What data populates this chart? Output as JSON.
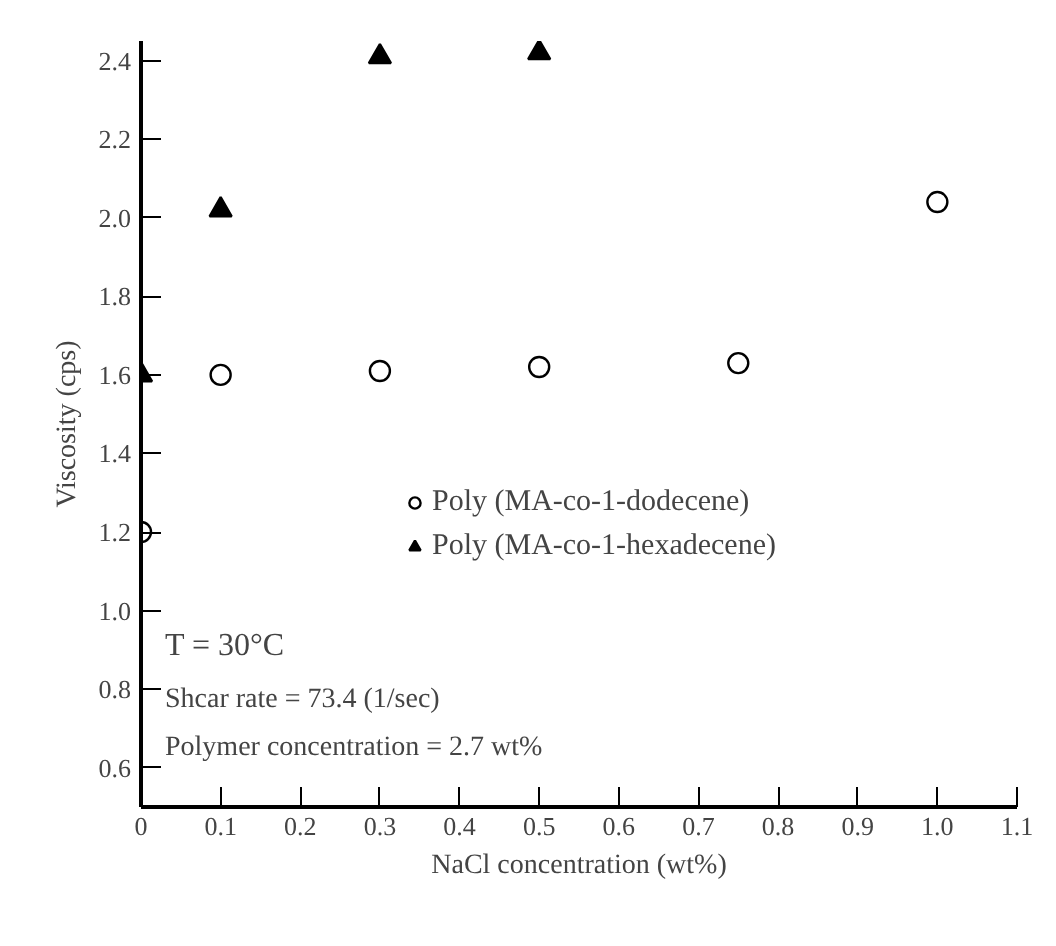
{
  "chart_data": {
    "type": "scatter",
    "xlabel": "NaCl concentration (wt%)",
    "ylabel": "Viscosity (cps)",
    "series": [
      {
        "name": "Poly (MA-co-1-dodecene)",
        "color": "#000000",
        "marker": "circle",
        "x": [
          0,
          0.1,
          0.3,
          0.5,
          0.75,
          1.0
        ],
        "values": [
          1.2,
          1.6,
          1.61,
          1.62,
          1.63,
          2.04
        ]
      },
      {
        "name": "Poly (MA-co-1-hexadecene)",
        "color": "#000000",
        "marker": "triangle",
        "x": [
          0,
          0.1,
          0.3,
          0.5
        ],
        "values": [
          1.6,
          2.02,
          2.41,
          2.42
        ]
      }
    ],
    "xlim": [
      0,
      1.1
    ],
    "xticks": [
      {
        "value": 0,
        "label": "0"
      },
      0.1,
      0.2,
      0.3,
      0.4,
      0.5,
      0.6,
      0.7,
      0.8,
      0.9,
      {
        "value": 1.0,
        "label": "1.0"
      },
      1.1
    ],
    "ylim": [
      0.5,
      2.45
    ],
    "yticks": [
      0.6,
      0.8,
      {
        "value": 1.0,
        "label": "1.0"
      },
      1.2,
      1.4,
      1.6,
      1.8,
      {
        "value": 2.0,
        "label": "2.0"
      },
      2.2,
      2.4
    ],
    "annotations": [
      "T = 30°C",
      "Shcar rate = 73.4 (1/sec)",
      "Polymer concentration = 2.7 wt%"
    ],
    "legend": "bottom right",
    "grid": false
  }
}
